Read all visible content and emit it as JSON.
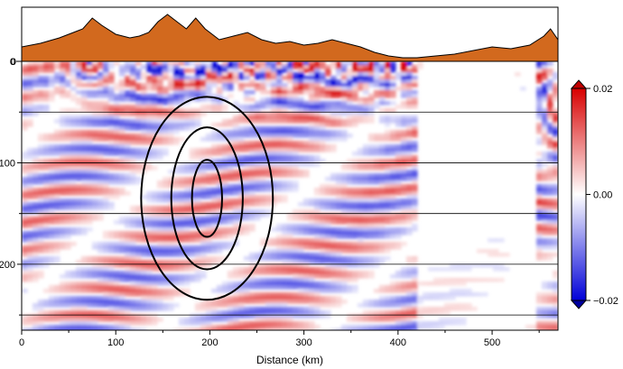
{
  "chart_data": {
    "type": "heatmap",
    "x": {
      "label": "Distance (km)",
      "range": [
        0,
        570
      ],
      "ticks": [
        0,
        100,
        200,
        300,
        400,
        500
      ]
    },
    "y": {
      "label": "",
      "range": [
        0,
        265
      ],
      "inverted": true,
      "ticks": [
        0,
        100,
        200
      ]
    },
    "topography": {
      "color": "#d2691e",
      "points": [
        [
          0,
          8
        ],
        [
          20,
          10
        ],
        [
          40,
          13
        ],
        [
          55,
          16
        ],
        [
          65,
          18
        ],
        [
          75,
          24
        ],
        [
          85,
          20
        ],
        [
          100,
          15
        ],
        [
          115,
          13
        ],
        [
          125,
          14
        ],
        [
          135,
          16
        ],
        [
          145,
          22
        ],
        [
          155,
          26
        ],
        [
          165,
          22
        ],
        [
          175,
          18
        ],
        [
          185,
          24
        ],
        [
          195,
          18
        ],
        [
          210,
          12
        ],
        [
          225,
          14
        ],
        [
          240,
          16
        ],
        [
          255,
          12
        ],
        [
          270,
          10
        ],
        [
          285,
          11
        ],
        [
          300,
          9
        ],
        [
          315,
          10
        ],
        [
          330,
          12
        ],
        [
          345,
          10
        ],
        [
          360,
          8
        ],
        [
          375,
          5
        ],
        [
          390,
          3
        ],
        [
          405,
          2
        ],
        [
          420,
          2
        ],
        [
          440,
          3
        ],
        [
          460,
          4
        ],
        [
          480,
          6
        ],
        [
          500,
          8
        ],
        [
          520,
          7
        ],
        [
          540,
          9
        ],
        [
          555,
          14
        ],
        [
          562,
          18
        ],
        [
          570,
          12
        ]
      ]
    },
    "horizontal_lines_depth": [
      50,
      100,
      150,
      200,
      250
    ],
    "ellipses": {
      "center": [
        197,
        135
      ],
      "semi_axes": [
        [
          70,
          100
        ],
        [
          38,
          70
        ],
        [
          16,
          38
        ]
      ]
    },
    "colorbar": {
      "min": -0.02,
      "max": 0.02,
      "ticks": [
        {
          "value": 0.02,
          "label": "0.02"
        },
        {
          "value": 0.0,
          "label": "0.00"
        },
        {
          "value": -0.02,
          "label": "−0.02"
        }
      ],
      "colormap": [
        "#0000d8",
        "#ffffff",
        "#d80000"
      ]
    }
  }
}
